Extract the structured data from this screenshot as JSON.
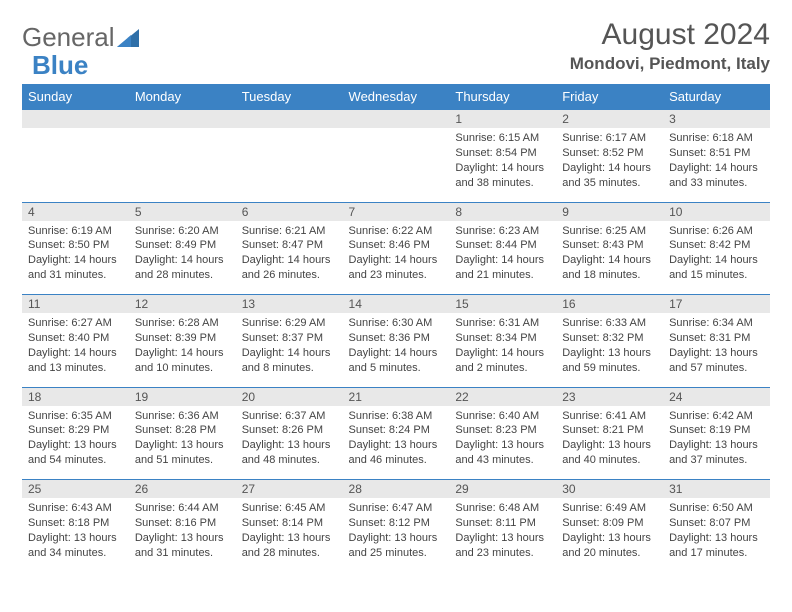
{
  "logo": {
    "part1": "General",
    "part2": "Blue"
  },
  "title": "August 2024",
  "location": "Mondovi, Piedmont, Italy",
  "colors": {
    "header_bg": "#3b82c4",
    "header_text": "#ffffff",
    "daynum_bg": "#e8e8e8",
    "text": "#444444",
    "title_text": "#555555",
    "row_divider": "#3b82c4",
    "page_bg": "#ffffff"
  },
  "typography": {
    "title_fontsize": 30,
    "location_fontsize": 17,
    "weekday_fontsize": 13,
    "daynum_fontsize": 12,
    "cell_fontsize": 11,
    "font_family": "Arial"
  },
  "layout": {
    "columns": 7,
    "rows": 5
  },
  "weekdays": [
    "Sunday",
    "Monday",
    "Tuesday",
    "Wednesday",
    "Thursday",
    "Friday",
    "Saturday"
  ],
  "weeks": [
    [
      null,
      null,
      null,
      null,
      {
        "n": "1",
        "sr": "6:15 AM",
        "ss": "8:54 PM",
        "dl": "14 hours and 38 minutes."
      },
      {
        "n": "2",
        "sr": "6:17 AM",
        "ss": "8:52 PM",
        "dl": "14 hours and 35 minutes."
      },
      {
        "n": "3",
        "sr": "6:18 AM",
        "ss": "8:51 PM",
        "dl": "14 hours and 33 minutes."
      }
    ],
    [
      {
        "n": "4",
        "sr": "6:19 AM",
        "ss": "8:50 PM",
        "dl": "14 hours and 31 minutes."
      },
      {
        "n": "5",
        "sr": "6:20 AM",
        "ss": "8:49 PM",
        "dl": "14 hours and 28 minutes."
      },
      {
        "n": "6",
        "sr": "6:21 AM",
        "ss": "8:47 PM",
        "dl": "14 hours and 26 minutes."
      },
      {
        "n": "7",
        "sr": "6:22 AM",
        "ss": "8:46 PM",
        "dl": "14 hours and 23 minutes."
      },
      {
        "n": "8",
        "sr": "6:23 AM",
        "ss": "8:44 PM",
        "dl": "14 hours and 21 minutes."
      },
      {
        "n": "9",
        "sr": "6:25 AM",
        "ss": "8:43 PM",
        "dl": "14 hours and 18 minutes."
      },
      {
        "n": "10",
        "sr": "6:26 AM",
        "ss": "8:42 PM",
        "dl": "14 hours and 15 minutes."
      }
    ],
    [
      {
        "n": "11",
        "sr": "6:27 AM",
        "ss": "8:40 PM",
        "dl": "14 hours and 13 minutes."
      },
      {
        "n": "12",
        "sr": "6:28 AM",
        "ss": "8:39 PM",
        "dl": "14 hours and 10 minutes."
      },
      {
        "n": "13",
        "sr": "6:29 AM",
        "ss": "8:37 PM",
        "dl": "14 hours and 8 minutes."
      },
      {
        "n": "14",
        "sr": "6:30 AM",
        "ss": "8:36 PM",
        "dl": "14 hours and 5 minutes."
      },
      {
        "n": "15",
        "sr": "6:31 AM",
        "ss": "8:34 PM",
        "dl": "14 hours and 2 minutes."
      },
      {
        "n": "16",
        "sr": "6:33 AM",
        "ss": "8:32 PM",
        "dl": "13 hours and 59 minutes."
      },
      {
        "n": "17",
        "sr": "6:34 AM",
        "ss": "8:31 PM",
        "dl": "13 hours and 57 minutes."
      }
    ],
    [
      {
        "n": "18",
        "sr": "6:35 AM",
        "ss": "8:29 PM",
        "dl": "13 hours and 54 minutes."
      },
      {
        "n": "19",
        "sr": "6:36 AM",
        "ss": "8:28 PM",
        "dl": "13 hours and 51 minutes."
      },
      {
        "n": "20",
        "sr": "6:37 AM",
        "ss": "8:26 PM",
        "dl": "13 hours and 48 minutes."
      },
      {
        "n": "21",
        "sr": "6:38 AM",
        "ss": "8:24 PM",
        "dl": "13 hours and 46 minutes."
      },
      {
        "n": "22",
        "sr": "6:40 AM",
        "ss": "8:23 PM",
        "dl": "13 hours and 43 minutes."
      },
      {
        "n": "23",
        "sr": "6:41 AM",
        "ss": "8:21 PM",
        "dl": "13 hours and 40 minutes."
      },
      {
        "n": "24",
        "sr": "6:42 AM",
        "ss": "8:19 PM",
        "dl": "13 hours and 37 minutes."
      }
    ],
    [
      {
        "n": "25",
        "sr": "6:43 AM",
        "ss": "8:18 PM",
        "dl": "13 hours and 34 minutes."
      },
      {
        "n": "26",
        "sr": "6:44 AM",
        "ss": "8:16 PM",
        "dl": "13 hours and 31 minutes."
      },
      {
        "n": "27",
        "sr": "6:45 AM",
        "ss": "8:14 PM",
        "dl": "13 hours and 28 minutes."
      },
      {
        "n": "28",
        "sr": "6:47 AM",
        "ss": "8:12 PM",
        "dl": "13 hours and 25 minutes."
      },
      {
        "n": "29",
        "sr": "6:48 AM",
        "ss": "8:11 PM",
        "dl": "13 hours and 23 minutes."
      },
      {
        "n": "30",
        "sr": "6:49 AM",
        "ss": "8:09 PM",
        "dl": "13 hours and 20 minutes."
      },
      {
        "n": "31",
        "sr": "6:50 AM",
        "ss": "8:07 PM",
        "dl": "13 hours and 17 minutes."
      }
    ]
  ],
  "labels": {
    "sunrise": "Sunrise: ",
    "sunset": "Sunset: ",
    "daylight": "Daylight: "
  }
}
